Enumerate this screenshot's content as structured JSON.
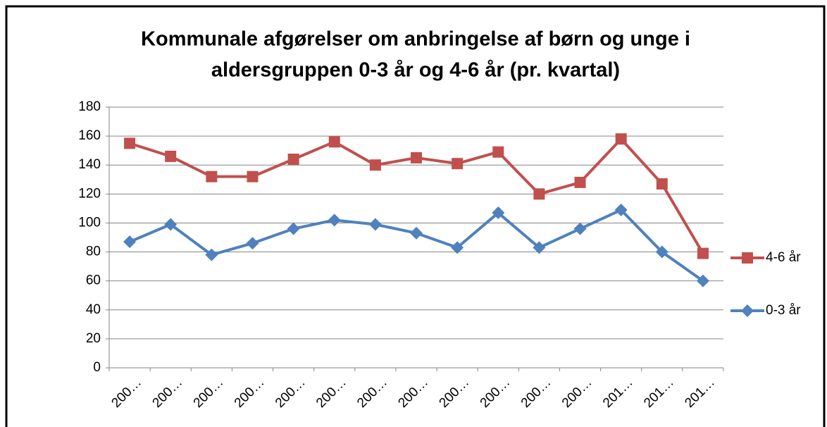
{
  "chart_data": {
    "type": "line",
    "title": [
      "Kommunale afgørelser om anbringelse af børn og unge i",
      "aldersgruppen  0-3 år og 4-6 år (pr. kvartal)"
    ],
    "categories": [
      "200…",
      "200…",
      "200…",
      "200…",
      "200…",
      "200…",
      "200…",
      "200…",
      "200…",
      "200…",
      "200…",
      "200…",
      "201…",
      "201…",
      "201…"
    ],
    "series": [
      {
        "name": "4-6 år",
        "color": "#c0504d",
        "marker": "square",
        "values": [
          155,
          146,
          132,
          132,
          144,
          156,
          140,
          145,
          141,
          149,
          120,
          128,
          158,
          127,
          79
        ]
      },
      {
        "name": "0-3 år",
        "color": "#4f81bd",
        "marker": "diamond",
        "values": [
          87,
          99,
          78,
          86,
          96,
          102,
          99,
          93,
          83,
          107,
          83,
          96,
          109,
          80,
          60
        ]
      }
    ],
    "ylim": [
      0,
      180
    ],
    "yticks": [
      0,
      20,
      40,
      60,
      80,
      100,
      120,
      140,
      160,
      180
    ],
    "grid": true,
    "legend": "right"
  }
}
